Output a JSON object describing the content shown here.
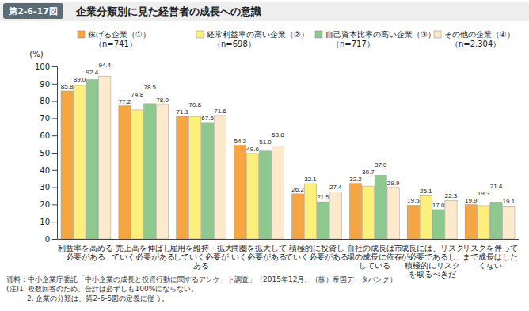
{
  "chart_data": {
    "type": "bar",
    "figure_number": "第2-6-17図",
    "title": "企業分類別に見た経営者の成長への意識",
    "y_label": "(%)",
    "categories": [
      "利益率を高める\n必要がある",
      "売上高を伸ばし\nていく必要がある",
      "雇用を維持・拡大\nしていく必要が\nある",
      "商圏を拡大して\nいく必要がある",
      "積極的に投資し\nていく必要がある",
      "自社の成長は市\n場の成長に依存\nしている",
      "成長には、リスク\nが必要であるし、\n積極的にリスク\nを取るべきだ",
      "リスクを伴って\nまで成長はした\nくない"
    ],
    "series": [
      {
        "name": "稼げる企業（①）\n（n=741）",
        "color": "#f5a542",
        "values": [
          85.8,
          77.2,
          71.1,
          54.3,
          26.2,
          32.2,
          19.5,
          19.9
        ],
        "value_labels": [
          "85.8",
          "77.2",
          "71.1",
          "54.3",
          "26.2",
          "32.2",
          "19.5",
          "19.9"
        ]
      },
      {
        "name": "経常利益率の高い企業（②）\n（n=698）",
        "color": "#fcef7c",
        "values": [
          89.0,
          74.8,
          70.8,
          49.6,
          32.1,
          30.7,
          25.1,
          19.3
        ],
        "value_labels": [
          "89.0",
          "74.8",
          "70.8",
          "49.6",
          "32.1",
          "30.7",
          "25.1",
          "19.3"
        ]
      },
      {
        "name": "自己資本比率の高い企業（③）\n（n=717）",
        "color": "#8dc98f",
        "values": [
          92.4,
          78.5,
          67.5,
          51.0,
          21.5,
          37.0,
          17.0,
          21.4
        ],
        "value_labels": [
          "92.4",
          "78.5",
          "67.5",
          "51.0",
          "21.5",
          "37.0",
          "17.0",
          "21.4"
        ]
      },
      {
        "name": "その他の企業（④）\n（n=2,304）",
        "color": "#fde9cc",
        "values": [
          94.4,
          78.0,
          71.6,
          53.8,
          27.4,
          29.9,
          22.3,
          19.1
        ],
        "value_labels": [
          "94.4",
          "78.0",
          "71.6",
          "53.8",
          "27.4",
          "29.9",
          "22.3",
          "19.1"
        ]
      }
    ],
    "ylim": [
      0,
      100
    ],
    "yticks": [
      0,
      10,
      20,
      30,
      40,
      50,
      60,
      70,
      80,
      90,
      100
    ],
    "grid": false,
    "legend": "top",
    "data_labels": true,
    "notes": [
      "資料：中小企業庁委託「中小企業の成長と投資行動に関するアンケート調査」（2015年12月、（株）帝国データバンク）",
      "(注)1. 複数回答のため、合計は必ずしも100%にならない。",
      "2. 企業の分類は、第2-6-5図の定義に従う。"
    ]
  }
}
